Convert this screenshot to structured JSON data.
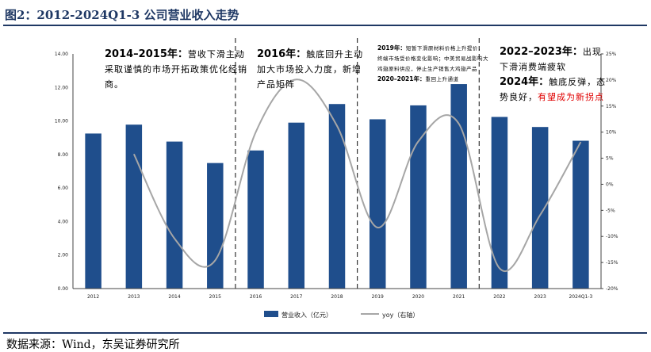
{
  "figure": {
    "title": "图2：2012-2024Q1-3 公司营业收入走势",
    "source": "数据来源：Wind，东吴证券研究所"
  },
  "annotations": {
    "a1": {
      "head": "2014–2015年：",
      "body": "营收下滑主动采取谨慎的市场开拓政策优化经销商。"
    },
    "a2": {
      "head": "2016年：",
      "body": "触底回升主动加大市场投入力度，新增产品矩阵"
    },
    "a3": {
      "head1": "2019年：",
      "body1": "短暂下滑原材料价格上升提价，终端市场受价格变化影响；中美贸易战影响大鸡翅原料供应，停止生产销售大鸡翅产品",
      "head2": "2020–2021年：",
      "body2": "重回上升通道"
    },
    "a4": {
      "head1": "2022–2023年：",
      "body1": "出现下滑消费端疲软",
      "head2": "2024年：",
      "body2a": "触底反弹，态势良好，",
      "body2b": "有望成为新拐点"
    }
  },
  "colors": {
    "bar": "#1f4e8c",
    "line": "#a6a6a6",
    "title": "#1f3864",
    "highlight": "#e00000"
  },
  "chart_data": {
    "type": "bar",
    "categories": [
      "2012",
      "2013",
      "2014",
      "2015",
      "2016",
      "2017",
      "2018",
      "2019",
      "2020",
      "2021",
      "2022",
      "2023",
      "2024Q1-3"
    ],
    "series": [
      {
        "name": "营业收入（亿元）",
        "type": "bar",
        "axis": "left",
        "values": [
          9.25,
          9.78,
          8.77,
          7.49,
          8.24,
          9.9,
          11.01,
          10.1,
          10.93,
          12.2,
          10.24,
          9.64,
          8.82
        ]
      },
      {
        "name": "yoy（右轴）",
        "type": "line",
        "axis": "right",
        "values": [
          null,
          5.8,
          -10.4,
          -14.6,
          10.0,
          20.1,
          11.2,
          -8.3,
          8.2,
          11.6,
          -16.1,
          -5.9,
          8.1
        ]
      }
    ],
    "left_axis": {
      "min": 0,
      "max": 14,
      "step": 2,
      "ticks": [
        "0.00",
        "2.00",
        "4.00",
        "6.00",
        "8.00",
        "10.00",
        "12.00",
        "14.00"
      ]
    },
    "right_axis": {
      "min": -20,
      "max": 25,
      "step": 5,
      "ticks": [
        "-20%",
        "-15%",
        "-10%",
        "-5%",
        "0%",
        "5%",
        "10%",
        "15%",
        "20%",
        "25%"
      ]
    },
    "legend_position": "bottom",
    "grid": false
  }
}
